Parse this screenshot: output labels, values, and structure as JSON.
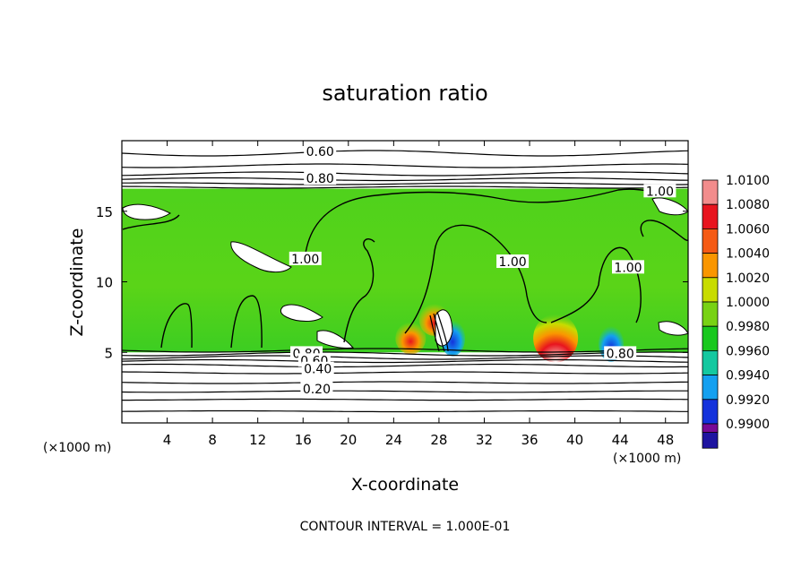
{
  "chart_data": {
    "type": "heatmap",
    "title": "saturation ratio",
    "xlabel": "X-coordinate",
    "ylabel": "Z-coordinate",
    "x_unit_label_left": "(×1000 m)",
    "x_unit_label_right": "(×1000 m)",
    "footer": "CONTOUR INTERVAL = 1.000E-01",
    "xlim": [
      0,
      50
    ],
    "ylim": [
      0,
      20
    ],
    "x_ticks": [
      4,
      8,
      12,
      16,
      20,
      24,
      28,
      32,
      36,
      40,
      44,
      48
    ],
    "x_tick_labels": [
      "4",
      "8",
      "12",
      "16",
      "20",
      "24",
      "28",
      "32",
      "36",
      "40",
      "44",
      "48"
    ],
    "y_ticks": [
      5,
      10,
      15
    ],
    "y_tick_labels": [
      "5",
      "10",
      "15"
    ],
    "colorbar": {
      "min": 0.99,
      "max": 1.01,
      "levels": [
        {
          "value": 1.01,
          "label": "1.0100",
          "color": "#f28c8c"
        },
        {
          "value": 1.008,
          "label": "1.0080",
          "color": "#e8141e"
        },
        {
          "value": 1.006,
          "label": "1.0060",
          "color": "#f55a14"
        },
        {
          "value": 1.004,
          "label": "1.0040",
          "color": "#fa9600"
        },
        {
          "value": 1.002,
          "label": "1.0020",
          "color": "#c8dc00"
        },
        {
          "value": 1.0,
          "label": "1.0000",
          "color": "#78d214"
        },
        {
          "value": 0.998,
          "label": "0.9980",
          "color": "#19c81e"
        },
        {
          "value": 0.996,
          "label": "0.9960",
          "color": "#14c8a0"
        },
        {
          "value": 0.994,
          "label": "0.9940",
          "color": "#14a0f0"
        },
        {
          "value": 0.992,
          "label": "0.9920",
          "color": "#1432dc"
        },
        {
          "value": 0.99,
          "label": "0.9900",
          "color": "#1e14a0"
        },
        {
          "value": 0.988,
          "label": "",
          "color": "#780a96"
        }
      ]
    },
    "cloud_layer_z": [
      5.0,
      16.6
    ],
    "contour_labels": [
      {
        "text": "0.60",
        "x": 17.5,
        "z": 19.1
      },
      {
        "text": "0.80",
        "x": 17.5,
        "z": 17.2
      },
      {
        "text": "1.00",
        "x": 47.5,
        "z": 16.3
      },
      {
        "text": "1.00",
        "x": 16.2,
        "z": 11.5
      },
      {
        "text": "1.00",
        "x": 34.5,
        "z": 11.3
      },
      {
        "text": "1.00",
        "x": 44.7,
        "z": 10.9
      },
      {
        "text": "0.80",
        "x": 16.3,
        "z": 4.8
      },
      {
        "text": "0.60",
        "x": 17.0,
        "z": 4.3
      },
      {
        "text": "0.40",
        "x": 17.3,
        "z": 3.7
      },
      {
        "text": "0.20",
        "x": 17.2,
        "z": 2.3
      },
      {
        "text": "0.80",
        "x": 44.0,
        "z": 4.8
      }
    ],
    "hotspots": [
      {
        "x": 38.3,
        "z": 6.0,
        "value": 1.01
      },
      {
        "x": 25.5,
        "z": 6.0,
        "value": 1.006
      },
      {
        "x": 27.6,
        "z": 7.3,
        "value": 1.008
      }
    ],
    "coldspots": [
      {
        "x": 29.2,
        "z": 6.0,
        "value": 0.992
      },
      {
        "x": 43.2,
        "z": 5.6,
        "value": 0.994
      }
    ]
  }
}
